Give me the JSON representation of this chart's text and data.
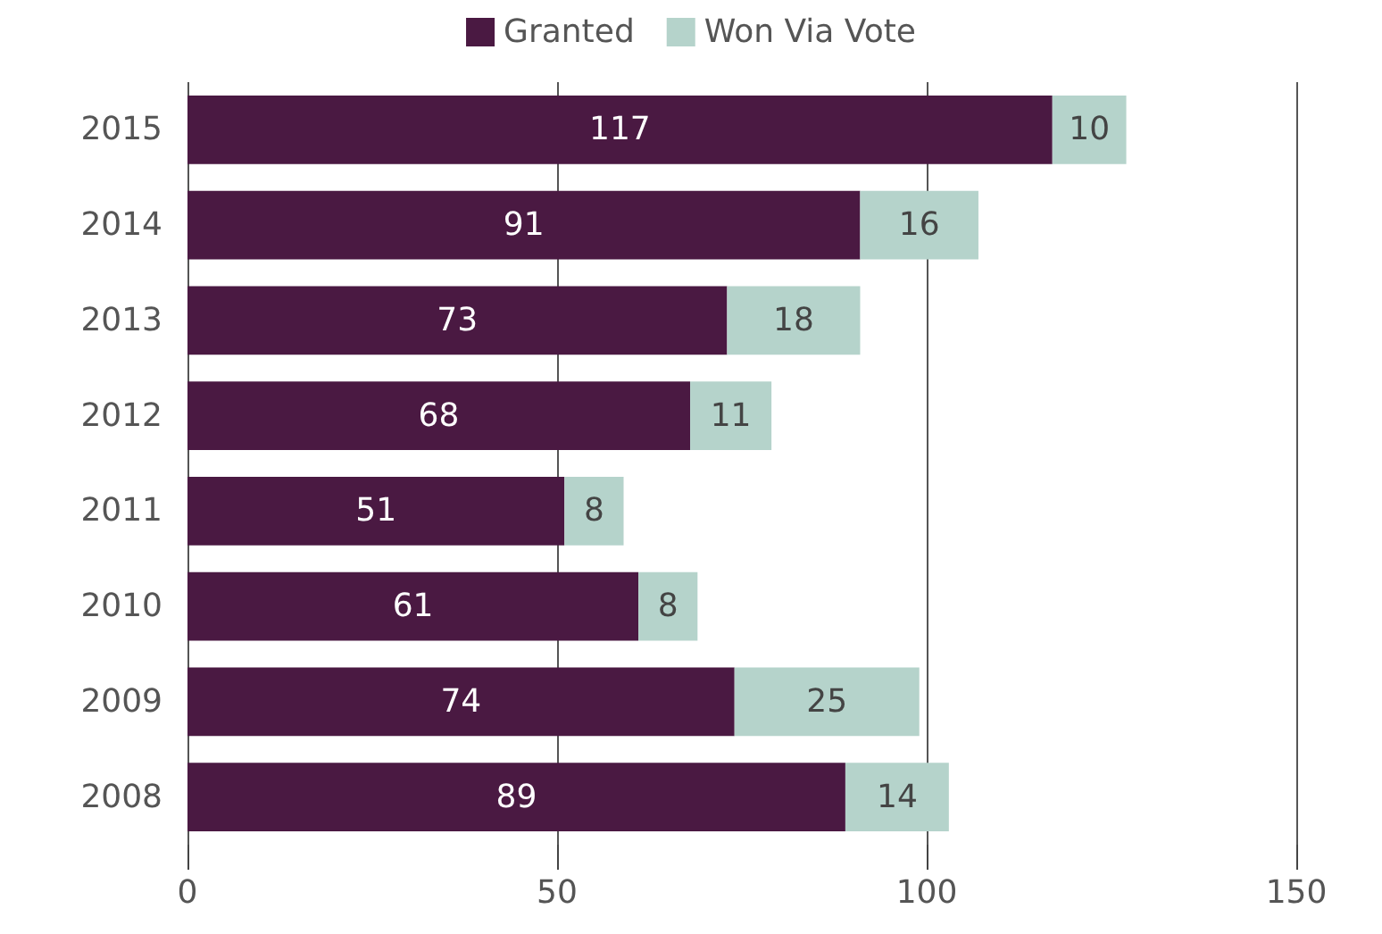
{
  "chart_data": {
    "type": "bar",
    "orientation": "horizontal",
    "stacked": true,
    "categories": [
      "2015",
      "2014",
      "2013",
      "2012",
      "2011",
      "2010",
      "2009",
      "2008"
    ],
    "series": [
      {
        "name": "Granted",
        "color": "#4a1942",
        "values": [
          117,
          91,
          73,
          68,
          51,
          61,
          74,
          89
        ]
      },
      {
        "name": "Won Via Vote",
        "color": "#b5d3cb",
        "values": [
          10,
          16,
          18,
          11,
          8,
          8,
          25,
          14
        ]
      }
    ],
    "xlim": [
      0,
      150
    ],
    "xticks": [
      0,
      50,
      100,
      150
    ],
    "grid": "x",
    "legend": "top",
    "data_labels": true
  }
}
